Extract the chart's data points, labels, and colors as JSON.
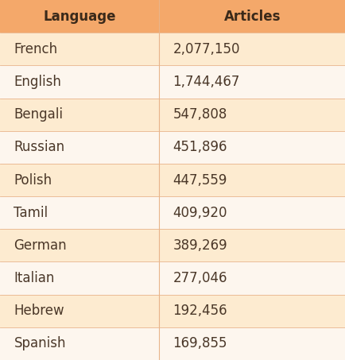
{
  "languages": [
    "French",
    "English",
    "Bengali",
    "Russian",
    "Polish",
    "Tamil",
    "German",
    "Italian",
    "Hebrew",
    "Spanish"
  ],
  "articles": [
    "2,077,150",
    "1,744,467",
    "547,808",
    "451,896",
    "447,559",
    "409,920",
    "389,269",
    "277,046",
    "192,456",
    "169,855"
  ],
  "header_bg": "#F4A86A",
  "row_bg_odd": "#FDEBD0",
  "row_bg_even": "#FDF6EE",
  "header_text_color": "#3B2A1A",
  "row_text_color": "#4A3728",
  "col_header_left": "Language",
  "col_header_right": "Articles",
  "header_fontsize": 12,
  "row_fontsize": 12,
  "divider_color": "#E8B48A",
  "col_split": 0.46
}
